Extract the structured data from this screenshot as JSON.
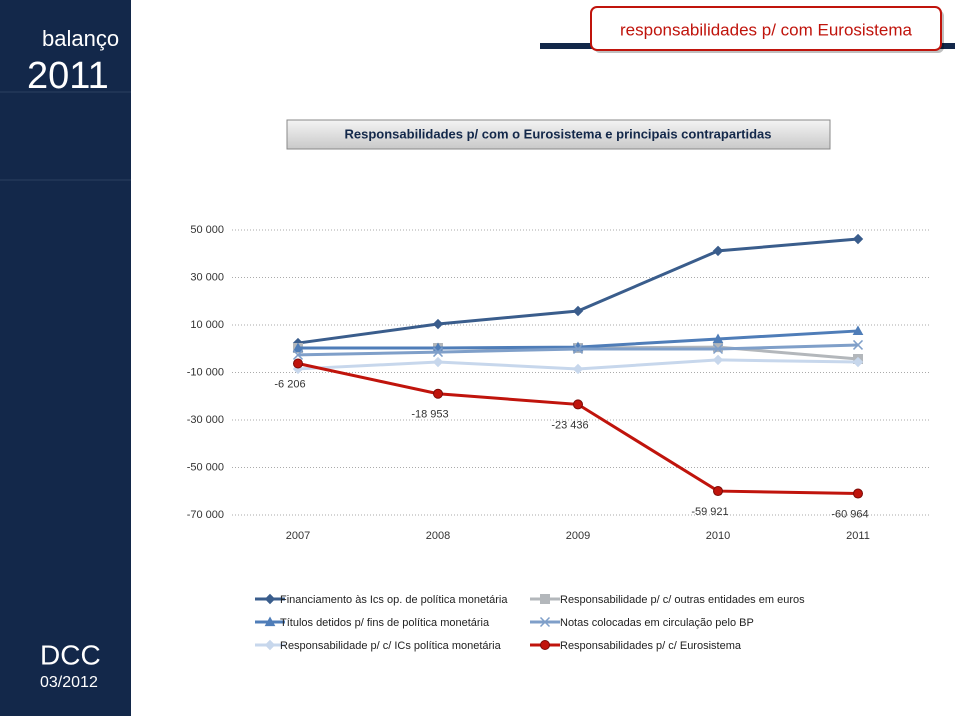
{
  "sidebar": {
    "title": "balanço",
    "year": "2011",
    "org": "DCC",
    "date": "03/2012"
  },
  "header": {
    "title": "responsabilidades p/ com Eurosistema"
  },
  "chart_data": {
    "type": "line",
    "title": "Responsabilidades p/ com o Eurosistema e principais contrapartidas",
    "categories": [
      "2007",
      "2008",
      "2009",
      "2010",
      "2011"
    ],
    "ylim": [
      -70000,
      50000
    ],
    "yticks": [
      {
        "value": -70000,
        "label": "-70 000"
      },
      {
        "value": -50000,
        "label": "-50 000"
      },
      {
        "value": -30000,
        "label": "-30 000"
      },
      {
        "value": -10000,
        "label": "-10 000"
      },
      {
        "value": 10000,
        "label": "10 000"
      },
      {
        "value": 30000,
        "label": "30 000"
      },
      {
        "value": 50000,
        "label": "50 000"
      }
    ],
    "grid": true,
    "series": [
      {
        "name": "Financiamento às Ics op. de política monetária",
        "color": "#3a5d8c",
        "marker": "diamond",
        "values": [
          2400,
          10400,
          15900,
          41200,
          46200
        ]
      },
      {
        "name": "Responsabilidade p/ c/ outras entidades em euros",
        "color": "#b3b7bb",
        "marker": "square",
        "values": [
          300,
          300,
          300,
          700,
          -4300
        ]
      },
      {
        "name": "Títulos detidos p/ fins de política monetária",
        "color": "#4f7db8",
        "marker": "triangle",
        "values": [
          300,
          300,
          700,
          4100,
          7500
        ]
      },
      {
        "name": "Notas colocadas em circulação pelo BP",
        "color": "#7f9fc9",
        "marker": "x",
        "values": [
          -2600,
          -1400,
          -100,
          -100,
          1600
        ]
      },
      {
        "name": "Responsabilidade p/ c/ ICs política monetária",
        "color": "#c7d7ec",
        "marker": "diamond",
        "values": [
          -8500,
          -5600,
          -8500,
          -4700,
          -5600
        ]
      },
      {
        "name": "Responsabilidades p/ c/ Eurosistema",
        "color": "#c0140c",
        "marker": "circle",
        "values": [
          -6206,
          -18953,
          -23436,
          -59921,
          -60964
        ],
        "value_labels": [
          "-6 206",
          "-18 953",
          "-23 436",
          "-59 921",
          "-60 964"
        ]
      }
    ]
  }
}
